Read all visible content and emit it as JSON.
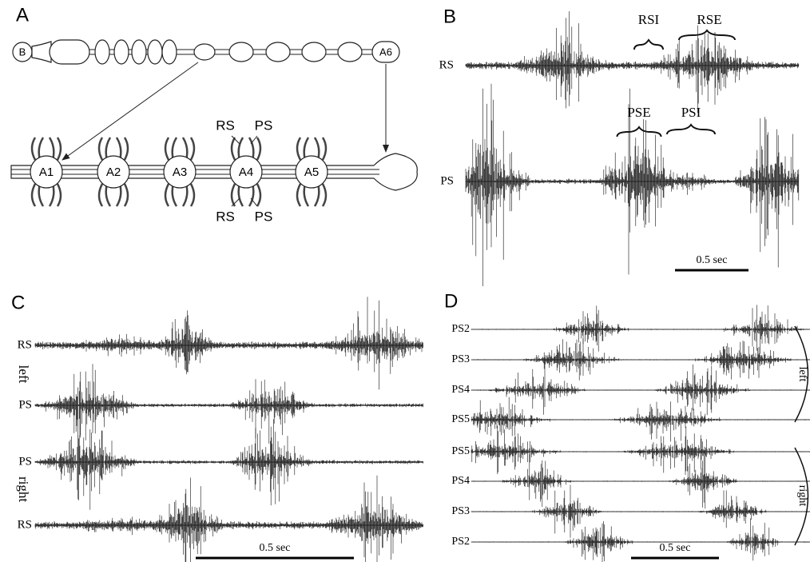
{
  "panel_a": {
    "label": "A",
    "head_labels": [
      "B",
      "A6"
    ],
    "ganglia": [
      "A1",
      "A2",
      "A3",
      "A4",
      "A5"
    ],
    "nerves_top": [
      "RS",
      "PS"
    ],
    "nerves_bottom": [
      "RS",
      "PS"
    ]
  },
  "panel_b": {
    "label": "B",
    "traces": [
      "RS",
      "PS"
    ],
    "brackets": [
      "RSI",
      "RSE",
      "PSE",
      "PSI"
    ],
    "scale_bar": "0.5 sec"
  },
  "panel_c": {
    "label": "C",
    "traces": [
      "RS",
      "PS",
      "PS",
      "RS"
    ],
    "sides": [
      "left",
      "right"
    ],
    "scale_bar": "0.5 sec"
  },
  "panel_d": {
    "label": "D",
    "traces": [
      "PS2",
      "PS3",
      "PS4",
      "PS5",
      "PS5",
      "PS4",
      "PS3",
      "PS2"
    ],
    "sides": [
      "left",
      "right"
    ],
    "scale_bar": "0.5 sec"
  }
}
